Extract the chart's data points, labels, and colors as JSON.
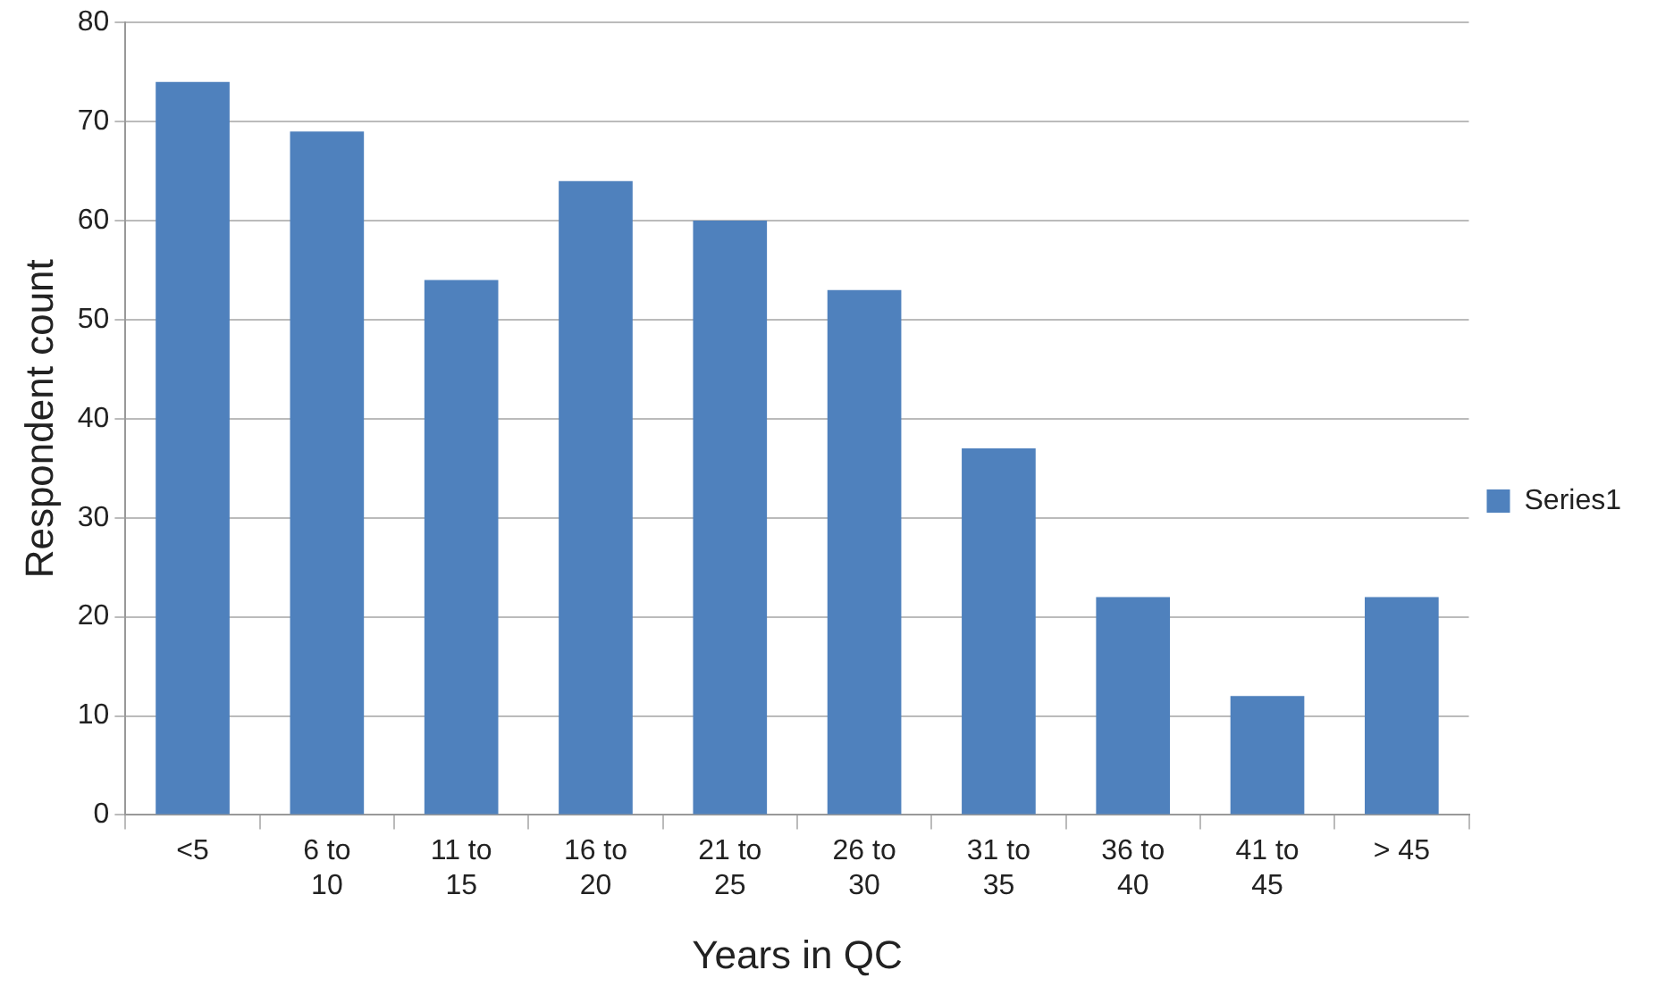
{
  "chart_data": {
    "type": "bar",
    "xlabel": "Years in QC",
    "ylabel": "Respondent count",
    "categories": [
      "<5",
      "6 to 10",
      "11 to 15",
      "16 to 20",
      "21 to 25",
      "26 to 30",
      "31 to 35",
      "36 to 40",
      "41 to 45",
      "> 45"
    ],
    "series": [
      {
        "name": "Series1",
        "color": "#4f81bd",
        "values": [
          74,
          69,
          54,
          64,
          60,
          53,
          37,
          22,
          12,
          22
        ]
      }
    ],
    "ylim": [
      0,
      80
    ],
    "yticks": [
      0,
      10,
      20,
      30,
      40,
      50,
      60,
      70,
      80
    ],
    "grid": "y",
    "legend": "right"
  }
}
